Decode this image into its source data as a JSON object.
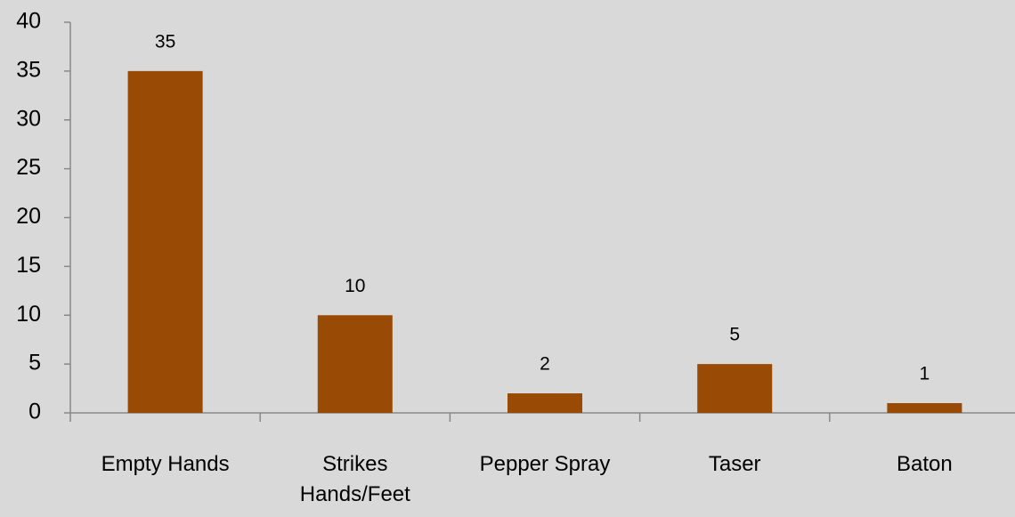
{
  "chart_data": {
    "type": "bar",
    "categories": [
      "Empty Hands",
      "Strikes Hands/Feet",
      "Pepper Spray",
      "Taser",
      "Baton"
    ],
    "values": [
      35,
      10,
      2,
      5,
      1
    ],
    "color": "#994a05",
    "ylim": [
      0,
      40
    ],
    "yticks": [
      0,
      5,
      10,
      15,
      20,
      25,
      30,
      35,
      40
    ],
    "grid": false
  }
}
